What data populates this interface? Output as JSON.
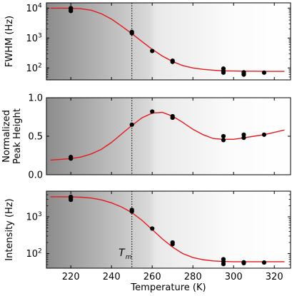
{
  "chart_data": [
    {
      "type": "scatter",
      "ylabel": "FWHM (Hz)",
      "yscale": "log",
      "ylim": [
        40,
        15000
      ],
      "xlim": [
        208,
        328
      ],
      "yticks": [
        {
          "value": 100,
          "label": "10",
          "exp": "2"
        },
        {
          "value": 1000,
          "label": "10",
          "exp": "3"
        },
        {
          "value": 10000,
          "label": "10",
          "exp": "4"
        }
      ],
      "points": [
        [
          220,
          10000
        ],
        [
          220,
          9000
        ],
        [
          220,
          8000
        ],
        [
          250,
          1600
        ],
        [
          250,
          1450
        ],
        [
          260,
          370
        ],
        [
          270,
          175
        ],
        [
          270,
          160
        ],
        [
          295,
          95
        ],
        [
          295,
          80
        ],
        [
          295,
          70
        ],
        [
          305,
          72
        ],
        [
          305,
          65
        ],
        [
          305,
          60
        ],
        [
          315,
          70
        ]
      ],
      "fit": [
        [
          210,
          10000
        ],
        [
          215,
          10000
        ],
        [
          220,
          9900
        ],
        [
          225,
          9500
        ],
        [
          230,
          8500
        ],
        [
          235,
          6500
        ],
        [
          240,
          4300
        ],
        [
          245,
          2500
        ],
        [
          250,
          1400
        ],
        [
          255,
          760
        ],
        [
          260,
          420
        ],
        [
          265,
          250
        ],
        [
          270,
          165
        ],
        [
          275,
          120
        ],
        [
          280,
          100
        ],
        [
          285,
          90
        ],
        [
          290,
          84
        ],
        [
          295,
          80
        ],
        [
          300,
          79
        ],
        [
          305,
          78
        ],
        [
          310,
          78
        ],
        [
          315,
          77
        ],
        [
          320,
          77
        ],
        [
          325,
          77
        ]
      ],
      "tm": 250,
      "colors": {
        "fit": "#e41a1c",
        "points": "#000000",
        "shade": "#8c8c8c"
      }
    },
    {
      "type": "scatter",
      "ylabel_lines": [
        "Normalized",
        "Peak Height"
      ],
      "yscale": "linear",
      "ylim": [
        0.0,
        1.0
      ],
      "xlim": [
        208,
        328
      ],
      "yticks": [
        {
          "value": 0.0,
          "label": "0.0"
        },
        {
          "value": 0.5,
          "label": "0.5"
        },
        {
          "value": 1.0,
          "label": "1.0"
        }
      ],
      "points": [
        [
          220,
          0.23
        ],
        [
          220,
          0.21
        ],
        [
          250,
          0.65
        ],
        [
          260,
          0.82
        ],
        [
          270,
          0.76
        ],
        [
          270,
          0.74
        ],
        [
          295,
          0.5
        ],
        [
          295,
          0.45
        ],
        [
          305,
          0.52
        ],
        [
          305,
          0.48
        ],
        [
          315,
          0.52
        ]
      ],
      "fit": [
        [
          210,
          0.19
        ],
        [
          215,
          0.2
        ],
        [
          220,
          0.21
        ],
        [
          225,
          0.23
        ],
        [
          230,
          0.27
        ],
        [
          235,
          0.33
        ],
        [
          240,
          0.42
        ],
        [
          245,
          0.53
        ],
        [
          250,
          0.64
        ],
        [
          255,
          0.74
        ],
        [
          260,
          0.8
        ],
        [
          265,
          0.81
        ],
        [
          270,
          0.76
        ],
        [
          275,
          0.68
        ],
        [
          280,
          0.59
        ],
        [
          285,
          0.52
        ],
        [
          290,
          0.47
        ],
        [
          295,
          0.46
        ],
        [
          300,
          0.46
        ],
        [
          305,
          0.48
        ],
        [
          310,
          0.5
        ],
        [
          315,
          0.52
        ],
        [
          320,
          0.55
        ],
        [
          325,
          0.58
        ]
      ],
      "tm": 250,
      "colors": {
        "fit": "#e41a1c",
        "points": "#000000",
        "shade": "#8c8c8c"
      }
    },
    {
      "type": "scatter",
      "ylabel": "Intensity (Hz)",
      "xlabel": "Temperature (K)",
      "yscale": "log",
      "ylim": [
        40,
        5000
      ],
      "xlim": [
        208,
        328
      ],
      "xticks": [
        220,
        240,
        260,
        280,
        300,
        320
      ],
      "yticks": [
        {
          "value": 100,
          "label": "10",
          "exp": "2"
        },
        {
          "value": 1000,
          "label": "10",
          "exp": "3"
        }
      ],
      "points": [
        [
          220,
          3500
        ],
        [
          220,
          3200
        ],
        [
          220,
          2900
        ],
        [
          250,
          1550
        ],
        [
          250,
          1400
        ],
        [
          260,
          480
        ],
        [
          270,
          200
        ],
        [
          270,
          180
        ],
        [
          295,
          70
        ],
        [
          295,
          60
        ],
        [
          295,
          52
        ],
        [
          305,
          58
        ],
        [
          305,
          55
        ],
        [
          315,
          57
        ]
      ],
      "fit": [
        [
          210,
          3500
        ],
        [
          215,
          3500
        ],
        [
          220,
          3480
        ],
        [
          225,
          3420
        ],
        [
          230,
          3250
        ],
        [
          235,
          2900
        ],
        [
          240,
          2400
        ],
        [
          245,
          1850
        ],
        [
          250,
          1300
        ],
        [
          255,
          800
        ],
        [
          260,
          450
        ],
        [
          265,
          250
        ],
        [
          270,
          150
        ],
        [
          275,
          100
        ],
        [
          280,
          78
        ],
        [
          285,
          68
        ],
        [
          290,
          63
        ],
        [
          295,
          61
        ],
        [
          300,
          60
        ],
        [
          305,
          60
        ],
        [
          310,
          60
        ],
        [
          315,
          60
        ],
        [
          320,
          60
        ],
        [
          325,
          60
        ]
      ],
      "tm": 250,
      "tm_label": "T",
      "tm_sub": "m",
      "colors": {
        "fit": "#e41a1c",
        "points": "#000000",
        "shade": "#8c8c8c"
      }
    }
  ]
}
